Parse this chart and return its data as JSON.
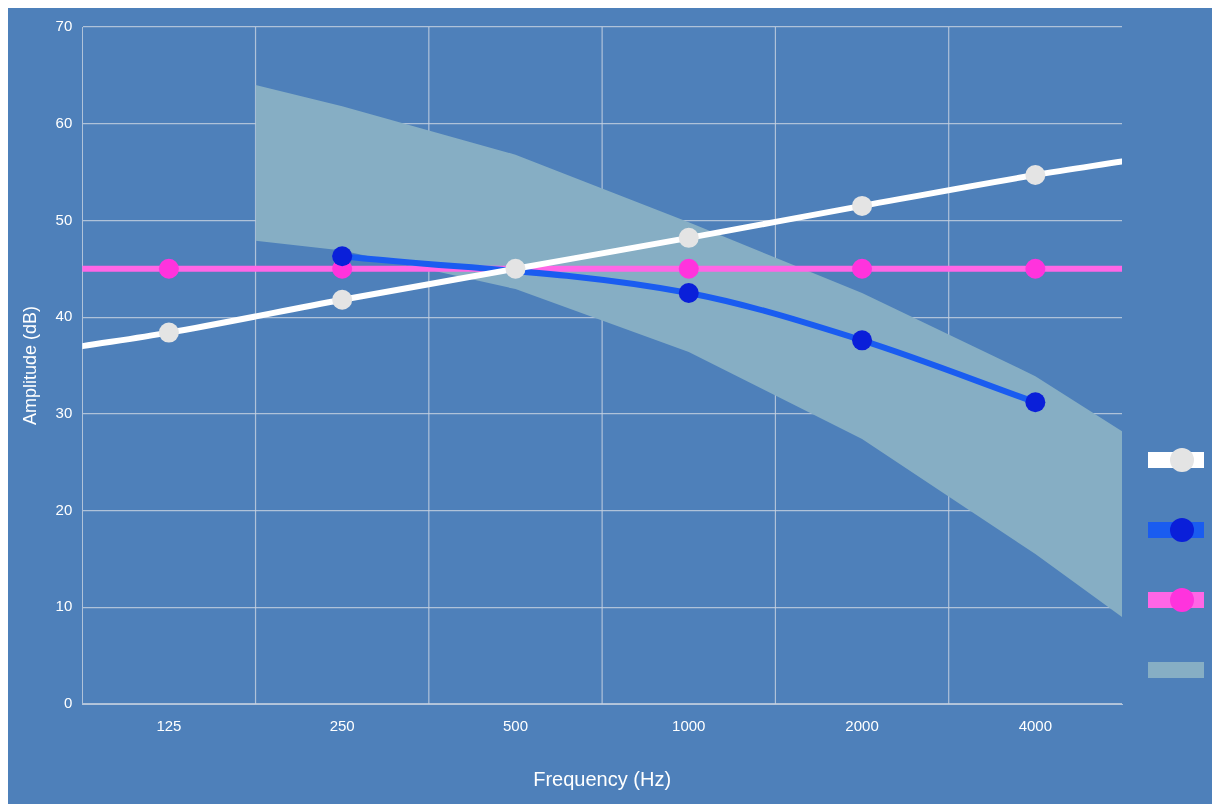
{
  "chart_data": {
    "type": "line",
    "xlabel": "Frequency (Hz)",
    "ylabel": "Amplitude (dB)",
    "log": "x",
    "xlim": [
      88.4,
      5657
    ],
    "xticks": [
      125,
      250,
      500,
      1000,
      2000,
      4000
    ],
    "ylim": [
      0,
      70
    ],
    "yticks": [
      0,
      10,
      20,
      30,
      40,
      50,
      60,
      70
    ],
    "grid": true,
    "marker": "circle",
    "line_style": "solid",
    "series": [
      {
        "type": "area",
        "color": "#86aec4",
        "x": [
          176.8,
          250,
          500,
          1000,
          2000,
          4000,
          5657
        ],
        "values": [
          null,
          null,
          null,
          null,
          null,
          null,
          null
        ],
        "lower": [
          47.9,
          46.9,
          42.9,
          36.4,
          27.4,
          15.5,
          9.0
        ],
        "upper": [
          64.0,
          61.8,
          56.8,
          49.8,
          42.5,
          33.9,
          28.2
        ]
      },
      {
        "color": "#ff66e6",
        "x": [
          88.4,
          125,
          250,
          500,
          1000,
          2000,
          4000,
          5657
        ],
        "values": [
          45,
          45,
          45,
          null,
          45,
          45,
          45,
          45
        ]
      },
      {
        "color": "#1a5cf0",
        "x": [
          250,
          500,
          1000,
          2000,
          4000
        ],
        "values": [
          46.3,
          null,
          42.5,
          37.6,
          31.2
        ]
      },
      {
        "color": "#ffffff",
        "x": [
          88.4,
          125,
          250,
          500,
          1000,
          2000,
          4000,
          5657
        ],
        "values": [
          37.0,
          38.4,
          41.8,
          45.0,
          48.2,
          51.5,
          54.7,
          56.1
        ]
      }
    ]
  }
}
